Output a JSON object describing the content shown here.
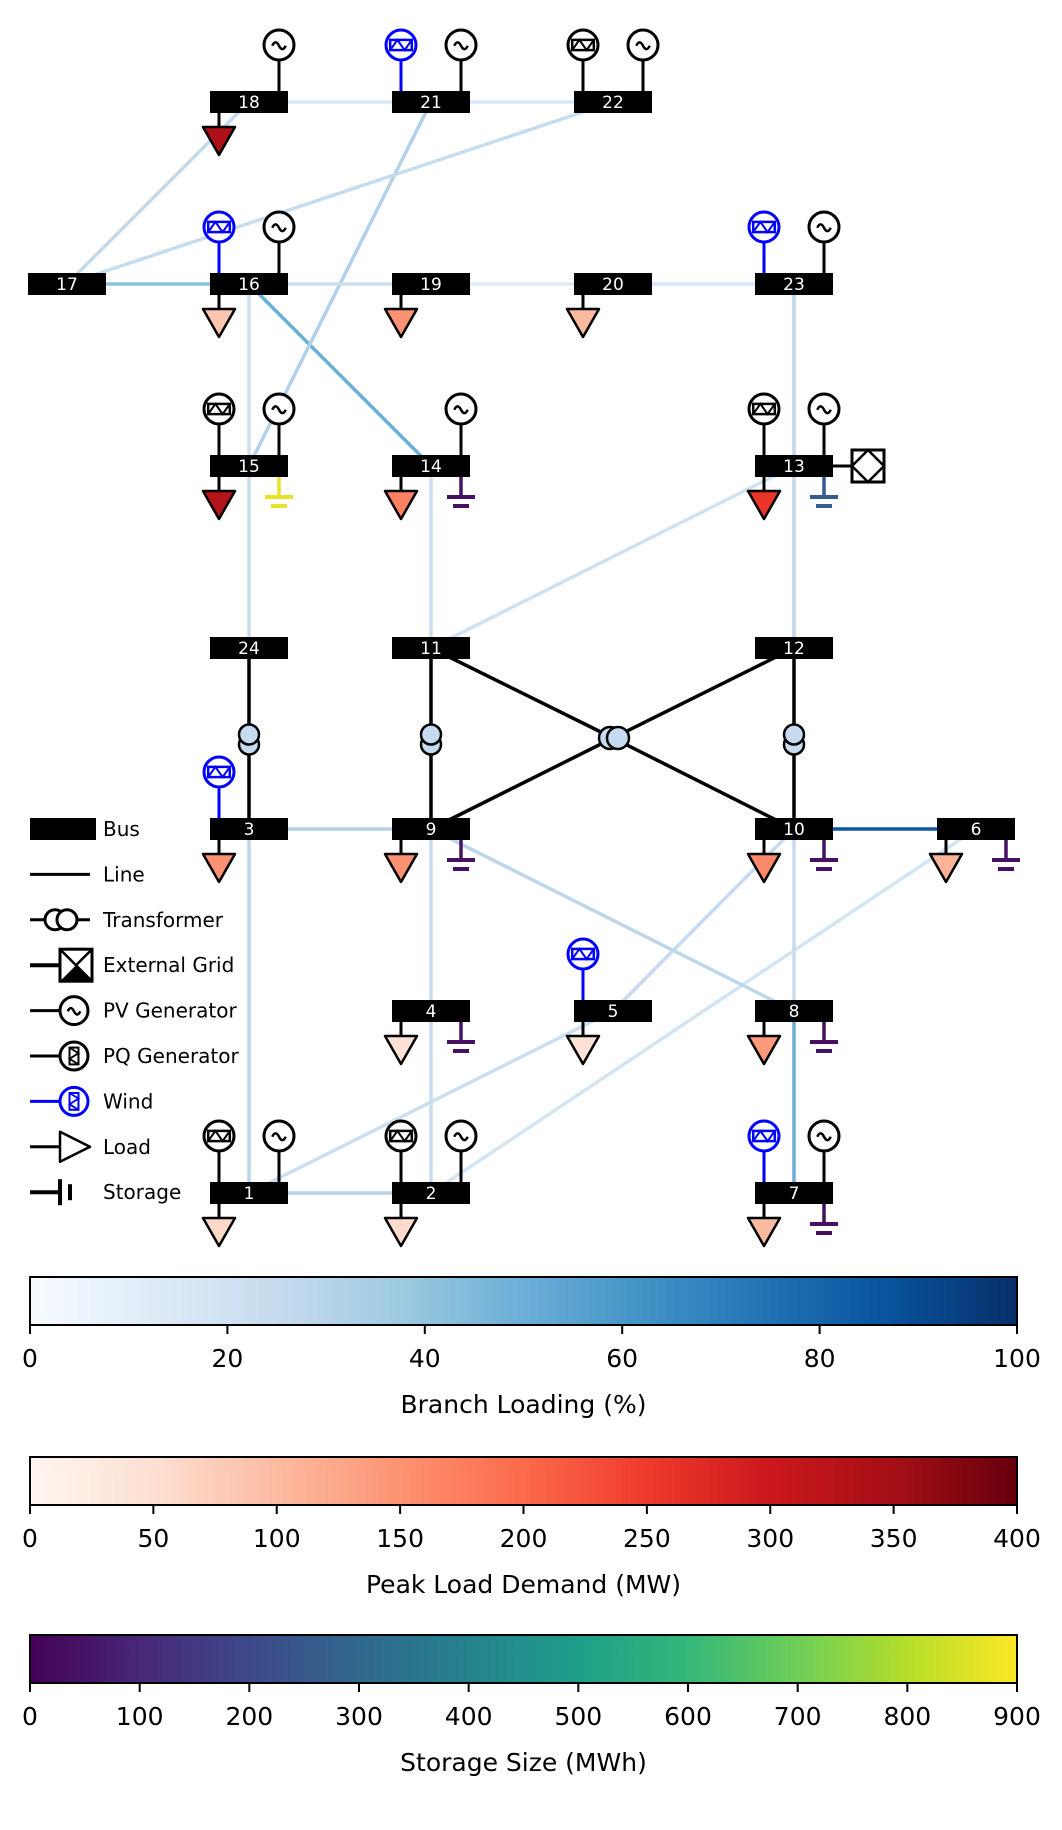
{
  "buses": [
    {
      "id": "1"
    },
    {
      "id": "2"
    },
    {
      "id": "3"
    },
    {
      "id": "4"
    },
    {
      "id": "5"
    },
    {
      "id": "6"
    },
    {
      "id": "7"
    },
    {
      "id": "8"
    },
    {
      "id": "9"
    },
    {
      "id": "10"
    },
    {
      "id": "11"
    },
    {
      "id": "12"
    },
    {
      "id": "13"
    },
    {
      "id": "14"
    },
    {
      "id": "15"
    },
    {
      "id": "16"
    },
    {
      "id": "17"
    },
    {
      "id": "18"
    },
    {
      "id": "19"
    },
    {
      "id": "20"
    },
    {
      "id": "21"
    },
    {
      "id": "22"
    },
    {
      "id": "23"
    },
    {
      "id": "24"
    }
  ],
  "lines": [
    {
      "from": "1",
      "to": "2",
      "loading": 30
    },
    {
      "from": "1",
      "to": "3",
      "loading": 28
    },
    {
      "from": "1",
      "to": "5",
      "loading": 22
    },
    {
      "from": "2",
      "to": "4",
      "loading": 24
    },
    {
      "from": "2",
      "to": "6",
      "loading": 18
    },
    {
      "from": "3",
      "to": "9",
      "loading": 32
    },
    {
      "from": "4",
      "to": "9",
      "loading": 24
    },
    {
      "from": "5",
      "to": "10",
      "loading": 25
    },
    {
      "from": "6",
      "to": "10",
      "loading": 85
    },
    {
      "from": "7",
      "to": "8",
      "loading": 50
    },
    {
      "from": "8",
      "to": "9",
      "loading": 28
    },
    {
      "from": "8",
      "to": "10",
      "loading": 24
    },
    {
      "from": "11",
      "to": "13",
      "loading": 20
    },
    {
      "from": "11",
      "to": "14",
      "loading": 22
    },
    {
      "from": "12",
      "to": "13",
      "loading": 28
    },
    {
      "from": "12",
      "to": "23",
      "loading": 26
    },
    {
      "from": "13",
      "to": "23",
      "loading": 26
    },
    {
      "from": "14",
      "to": "16",
      "loading": 50
    },
    {
      "from": "15",
      "to": "16",
      "loading": 20
    },
    {
      "from": "15",
      "to": "21",
      "loading": 32
    },
    {
      "from": "15",
      "to": "24",
      "loading": 24
    },
    {
      "from": "16",
      "to": "17",
      "loading": 42
    },
    {
      "from": "16",
      "to": "19",
      "loading": 22
    },
    {
      "from": "17",
      "to": "18",
      "loading": 26
    },
    {
      "from": "17",
      "to": "22",
      "loading": 24
    },
    {
      "from": "18",
      "to": "21",
      "loading": 14
    },
    {
      "from": "19",
      "to": "20",
      "loading": 12
    },
    {
      "from": "20",
      "to": "23",
      "loading": 16
    },
    {
      "from": "21",
      "to": "22",
      "loading": 16
    }
  ],
  "transformers": [
    {
      "from": "3",
      "to": "24"
    },
    {
      "from": "9",
      "to": "11"
    },
    {
      "from": "9",
      "to": "12"
    },
    {
      "from": "10",
      "to": "11"
    },
    {
      "from": "10",
      "to": "12"
    }
  ],
  "loads": [
    {
      "bus": "1",
      "mw": 60
    },
    {
      "bus": "2",
      "mw": 55
    },
    {
      "bus": "3",
      "mw": 150
    },
    {
      "bus": "4",
      "mw": 45
    },
    {
      "bus": "5",
      "mw": 45
    },
    {
      "bus": "6",
      "mw": 110
    },
    {
      "bus": "7",
      "mw": 100
    },
    {
      "bus": "8",
      "mw": 140
    },
    {
      "bus": "9",
      "mw": 150
    },
    {
      "bus": "10",
      "mw": 160
    },
    {
      "bus": "13",
      "mw": 260
    },
    {
      "bus": "14",
      "mw": 170
    },
    {
      "bus": "15",
      "mw": 330
    },
    {
      "bus": "16",
      "mw": 85
    },
    {
      "bus": "18",
      "mw": 340
    },
    {
      "bus": "19",
      "mw": 150
    },
    {
      "bus": "20",
      "mw": 100
    }
  ],
  "storage": [
    {
      "bus": "6",
      "mwh": 40
    },
    {
      "bus": "7",
      "mwh": 40
    },
    {
      "bus": "8",
      "mwh": 40
    },
    {
      "bus": "9",
      "mwh": 40
    },
    {
      "bus": "10",
      "mwh": 40
    },
    {
      "bus": "13",
      "mwh": 260
    },
    {
      "bus": "14",
      "mwh": 40
    },
    {
      "bus": "15",
      "mwh": 870
    },
    {
      "bus": "4",
      "mwh": 40
    }
  ],
  "pv_generators": [
    "1",
    "2",
    "7",
    "13",
    "14",
    "15",
    "16",
    "18",
    "21",
    "22",
    "23"
  ],
  "pq_generators": [
    "1",
    "2",
    "13",
    "15",
    "22"
  ],
  "wind_generators": [
    "3",
    "5",
    "7",
    "16",
    "21",
    "23"
  ],
  "external_grid": [
    "13"
  ],
  "colors": {
    "bus": "#000000",
    "transformer_fill": "#c6dbef",
    "wind": "#0000ff",
    "branch_cmap": [
      "#f7fbff",
      "#deebf7",
      "#c6dbef",
      "#9ecae1",
      "#6baed6",
      "#4292c6",
      "#2171b5",
      "#08519c",
      "#08306b"
    ],
    "load_cmap": [
      "#fff5f0",
      "#fee0d2",
      "#fcbba1",
      "#fc9272",
      "#fb6a4a",
      "#ef3b2c",
      "#cb181d",
      "#a50f15",
      "#67000d"
    ],
    "storage_cmap": [
      "#440154",
      "#482878",
      "#3e4989",
      "#31688e",
      "#26828e",
      "#1f9e89",
      "#35b779",
      "#6ece58",
      "#b5de2b",
      "#fde725"
    ]
  },
  "legend": [
    {
      "symbol": "bus",
      "label": "Bus"
    },
    {
      "symbol": "line",
      "label": "Line"
    },
    {
      "symbol": "transformer",
      "label": "Transformer"
    },
    {
      "symbol": "external-grid",
      "label": "External Grid"
    },
    {
      "symbol": "pv-generator",
      "label": "PV Generator"
    },
    {
      "symbol": "pq-generator",
      "label": "PQ Generator"
    },
    {
      "symbol": "wind",
      "label": "Wind"
    },
    {
      "symbol": "load",
      "label": "Load"
    },
    {
      "symbol": "storage",
      "label": "Storage"
    }
  ],
  "colorbars": [
    {
      "key": "branch",
      "title": "Branch Loading (%)",
      "min": 0,
      "max": 100,
      "ticks": [
        "0",
        "20",
        "40",
        "60",
        "80",
        "100"
      ]
    },
    {
      "key": "load",
      "title": "Peak Load Demand (MW)",
      "min": 0,
      "max": 400,
      "ticks": [
        "0",
        "50",
        "100",
        "150",
        "200",
        "250",
        "300",
        "350",
        "400"
      ]
    },
    {
      "key": "storage",
      "title": "Storage Size (MWh)",
      "min": 0,
      "max": 900,
      "ticks": [
        "0",
        "100",
        "200",
        "300",
        "400",
        "500",
        "600",
        "700",
        "800",
        "900"
      ]
    }
  ]
}
